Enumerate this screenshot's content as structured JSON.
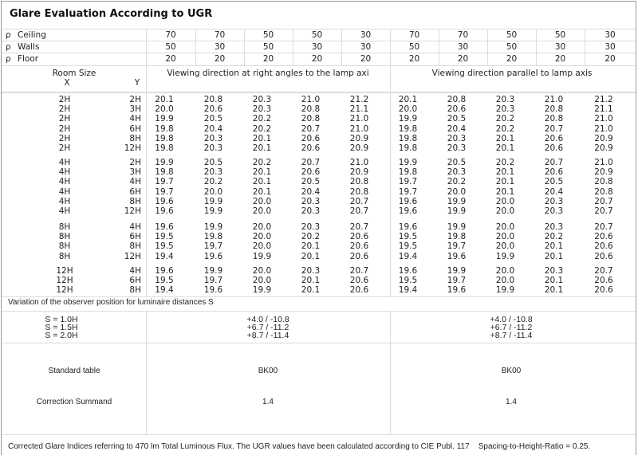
{
  "title": "Glare Evaluation According to UGR",
  "reflectance": {
    "symbol": "ρ",
    "rows": [
      {
        "label": "Ceiling",
        "values": [
          "70",
          "70",
          "50",
          "50",
          "30",
          "70",
          "70",
          "50",
          "50",
          "30"
        ]
      },
      {
        "label": "Walls",
        "values": [
          "50",
          "30",
          "50",
          "30",
          "30",
          "50",
          "30",
          "50",
          "30",
          "30"
        ]
      },
      {
        "label": "Floor",
        "values": [
          "20",
          "20",
          "20",
          "20",
          "20",
          "20",
          "20",
          "20",
          "20",
          "20"
        ]
      }
    ]
  },
  "room_size": {
    "label": "Room Size",
    "x_label": "X",
    "y_label": "Y"
  },
  "directions": {
    "right_angles": "Viewing direction at right angles to the lamp axi",
    "parallel": "Viewing direction parallel to lamp axis"
  },
  "groups": [
    {
      "rows": [
        {
          "x": "2H",
          "y": "2H",
          "left": [
            "20.1",
            "20.8",
            "20.3",
            "21.0",
            "21.2"
          ],
          "right": [
            "20.1",
            "20.8",
            "20.3",
            "21.0",
            "21.2"
          ]
        },
        {
          "x": "2H",
          "y": "3H",
          "left": [
            "20.0",
            "20.6",
            "20.3",
            "20.8",
            "21.1"
          ],
          "right": [
            "20.0",
            "20.6",
            "20.3",
            "20.8",
            "21.1"
          ]
        },
        {
          "x": "2H",
          "y": "4H",
          "left": [
            "19.9",
            "20.5",
            "20.2",
            "20.8",
            "21.0"
          ],
          "right": [
            "19.9",
            "20.5",
            "20.2",
            "20.8",
            "21.0"
          ]
        },
        {
          "x": "2H",
          "y": "6H",
          "left": [
            "19.8",
            "20.4",
            "20.2",
            "20.7",
            "21.0"
          ],
          "right": [
            "19.8",
            "20.4",
            "20.2",
            "20.7",
            "21.0"
          ]
        },
        {
          "x": "2H",
          "y": "8H",
          "left": [
            "19.8",
            "20.3",
            "20.1",
            "20.6",
            "20.9"
          ],
          "right": [
            "19.8",
            "20.3",
            "20.1",
            "20.6",
            "20.9"
          ]
        },
        {
          "x": "2H",
          "y": "12H",
          "left": [
            "19.8",
            "20.3",
            "20.1",
            "20.6",
            "20.9"
          ],
          "right": [
            "19.8",
            "20.3",
            "20.1",
            "20.6",
            "20.9"
          ]
        }
      ]
    },
    {
      "rows": [
        {
          "x": "4H",
          "y": "2H",
          "left": [
            "19.9",
            "20.5",
            "20.2",
            "20.7",
            "21.0"
          ],
          "right": [
            "19.9",
            "20.5",
            "20.2",
            "20.7",
            "21.0"
          ]
        },
        {
          "x": "4H",
          "y": "3H",
          "left": [
            "19.8",
            "20.3",
            "20.1",
            "20.6",
            "20.9"
          ],
          "right": [
            "19.8",
            "20.3",
            "20.1",
            "20.6",
            "20.9"
          ]
        },
        {
          "x": "4H",
          "y": "4H",
          "left": [
            "19.7",
            "20.2",
            "20.1",
            "20.5",
            "20.8"
          ],
          "right": [
            "19.7",
            "20.2",
            "20.1",
            "20.5",
            "20.8"
          ]
        },
        {
          "x": "4H",
          "y": "6H",
          "left": [
            "19.7",
            "20.0",
            "20.1",
            "20.4",
            "20.8"
          ],
          "right": [
            "19.7",
            "20.0",
            "20.1",
            "20.4",
            "20.8"
          ]
        },
        {
          "x": "4H",
          "y": "8H",
          "left": [
            "19.6",
            "19.9",
            "20.0",
            "20.3",
            "20.7"
          ],
          "right": [
            "19.6",
            "19.9",
            "20.0",
            "20.3",
            "20.7"
          ]
        },
        {
          "x": "4H",
          "y": "12H",
          "left": [
            "19.6",
            "19.9",
            "20.0",
            "20.3",
            "20.7"
          ],
          "right": [
            "19.6",
            "19.9",
            "20.0",
            "20.3",
            "20.7"
          ]
        }
      ]
    },
    {
      "rows": [
        {
          "x": "8H",
          "y": "4H",
          "left": [
            "19.6",
            "19.9",
            "20.0",
            "20.3",
            "20.7"
          ],
          "right": [
            "19.6",
            "19.9",
            "20.0",
            "20.3",
            "20.7"
          ]
        },
        {
          "x": "8H",
          "y": "6H",
          "left": [
            "19.5",
            "19.8",
            "20.0",
            "20.2",
            "20.6"
          ],
          "right": [
            "19.5",
            "19.8",
            "20.0",
            "20.2",
            "20.6"
          ]
        },
        {
          "x": "8H",
          "y": "8H",
          "left": [
            "19.5",
            "19.7",
            "20.0",
            "20.1",
            "20.6"
          ],
          "right": [
            "19.5",
            "19.7",
            "20.0",
            "20.1",
            "20.6"
          ]
        },
        {
          "x": "8H",
          "y": "12H",
          "left": [
            "19.4",
            "19.6",
            "19.9",
            "20.1",
            "20.6"
          ],
          "right": [
            "19.4",
            "19.6",
            "19.9",
            "20.1",
            "20.6"
          ]
        }
      ]
    },
    {
      "rows": [
        {
          "x": "12H",
          "y": "4H",
          "left": [
            "19.6",
            "19.9",
            "20.0",
            "20.3",
            "20.7"
          ],
          "right": [
            "19.6",
            "19.9",
            "20.0",
            "20.3",
            "20.7"
          ]
        },
        {
          "x": "12H",
          "y": "6H",
          "left": [
            "19.5",
            "19.7",
            "20.0",
            "20.1",
            "20.6"
          ],
          "right": [
            "19.5",
            "19.7",
            "20.0",
            "20.1",
            "20.6"
          ]
        },
        {
          "x": "12H",
          "y": "8H",
          "left": [
            "19.4",
            "19.6",
            "19.9",
            "20.1",
            "20.6"
          ],
          "right": [
            "19.4",
            "19.6",
            "19.9",
            "20.1",
            "20.6"
          ]
        }
      ]
    }
  ],
  "variation": {
    "label": "Variation of the observer position for luminaire distances S",
    "rows": [
      {
        "s": "S = 1.0H",
        "left": "+4.0 / -10.8",
        "right": "+4.0 / -10.8"
      },
      {
        "s": "S = 1.5H",
        "left": "+6.7 / -11.2",
        "right": "+6.7 / -11.2"
      },
      {
        "s": "S = 2.0H",
        "left": "+8.7 / -11.4",
        "right": "+8.7 / -11.4"
      }
    ]
  },
  "standard_table": {
    "label": "Standard table",
    "left": "BK00",
    "right": "BK00"
  },
  "correction": {
    "label": "Correction Summand",
    "left": "1.4",
    "right": "1.4"
  },
  "footer": "Corrected Glare Indices referring to 470 lm Total Luminous Flux. The UGR values have been calculated according to CIE Publ. 117    Spacing-to-Height-Ratio = 0.25."
}
